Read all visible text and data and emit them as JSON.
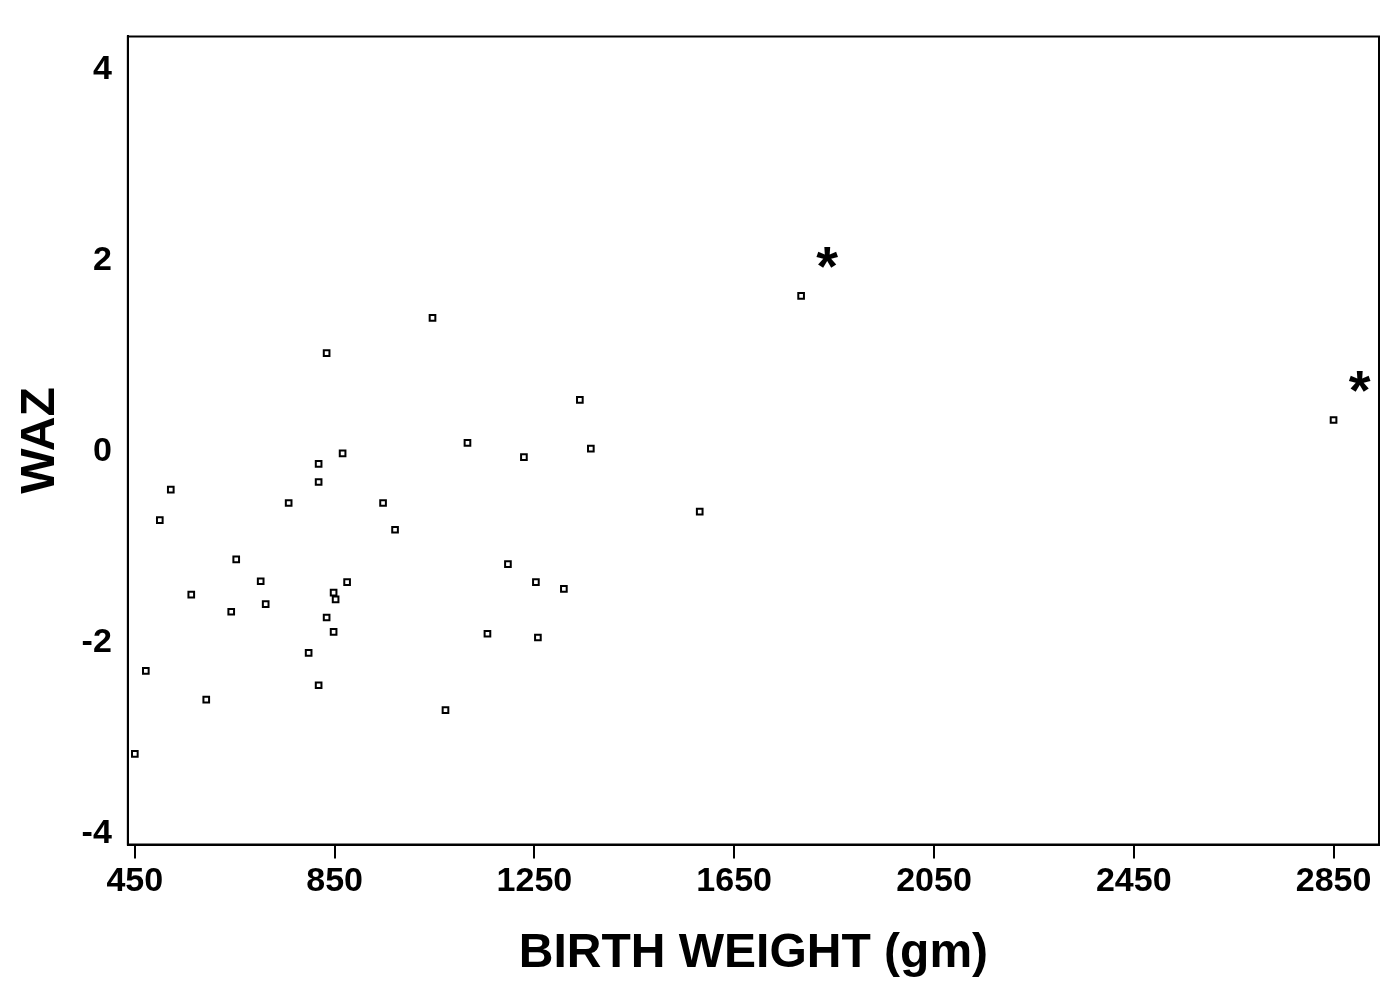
{
  "chart_data": {
    "type": "scatter",
    "xlabel": "BIRTH WEIGHT (gm)",
    "ylabel": "WAZ",
    "x": [
      450,
      472,
      500,
      522,
      563,
      593,
      643,
      653,
      702,
      712,
      758,
      798,
      818,
      818,
      818,
      834,
      834,
      848,
      852,
      848,
      866,
      875,
      947,
      971,
      1046,
      1072,
      1116,
      1156,
      1197,
      1229,
      1253,
      1257,
      1309,
      1341,
      1363,
      1581,
      1784,
      2850
    ],
    "series": [
      {
        "color": "#000000",
        "values": [
          -3.17,
          -2.3,
          -0.72,
          -0.4,
          -1.5,
          -2.6,
          -1.68,
          -1.13,
          -1.36,
          -1.6,
          -0.54,
          -2.11,
          -2.45,
          -0.13,
          -0.32,
          1.03,
          -1.74,
          -1.48,
          -1.55,
          -1.89,
          -0.02,
          -1.37,
          -0.54,
          -0.82,
          1.4,
          -2.71,
          0.09,
          -1.91,
          -1.18,
          -0.06,
          -1.37,
          -1.95,
          -1.44,
          0.54,
          0.03,
          -0.63,
          1.63,
          0.33
        ]
      }
    ],
    "marker": "square",
    "grid": false,
    "legend": false,
    "xlim": [
      436,
      2941
    ],
    "xticks": [
      450,
      850,
      1250,
      1650,
      2050,
      2450,
      2850
    ],
    "ylim": [
      -4.12,
      4.35
    ],
    "yticks": [
      -4,
      -2,
      0,
      2,
      4
    ],
    "annotations": [
      {
        "text": "*",
        "x": 1784,
        "y": 1.63
      },
      {
        "text": "*",
        "x": 2850,
        "y": 0.33
      }
    ]
  }
}
